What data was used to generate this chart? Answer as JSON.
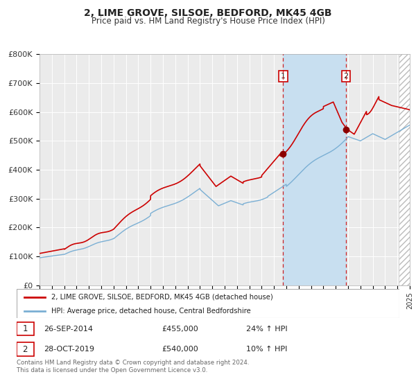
{
  "title": "2, LIME GROVE, SILSOE, BEDFORD, MK45 4GB",
  "subtitle": "Price paid vs. HM Land Registry's House Price Index (HPI)",
  "bg_color": "#ffffff",
  "plot_bg_color": "#ebebeb",
  "grid_color": "#ffffff",
  "red_line_color": "#cc0000",
  "blue_line_color": "#7aafd4",
  "blue_fill_color": "#c8dff0",
  "sale1_date": 2014.74,
  "sale1_label": "26-SEP-2014",
  "sale1_price": "£455,000",
  "sale1_pct": "24% ↑ HPI",
  "sale1_value": 455000,
  "sale2_date": 2019.83,
  "sale2_label": "28-OCT-2019",
  "sale2_price": "£540,000",
  "sale2_pct": "10% ↑ HPI",
  "sale2_value": 540000,
  "xmin": 1995,
  "xmax": 2025,
  "ymin": 0,
  "ymax": 800000,
  "yticks": [
    0,
    100000,
    200000,
    300000,
    400000,
    500000,
    600000,
    700000,
    800000
  ],
  "ytick_labels": [
    "£0",
    "£100K",
    "£200K",
    "£300K",
    "£400K",
    "£500K",
    "£600K",
    "£700K",
    "£800K"
  ],
  "legend_line1": "2, LIME GROVE, SILSOE, BEDFORD, MK45 4GB (detached house)",
  "legend_line2": "HPI: Average price, detached house, Central Bedfordshire",
  "footer": "Contains HM Land Registry data © Crown copyright and database right 2024.\nThis data is licensed under the Open Government Licence v3.0."
}
